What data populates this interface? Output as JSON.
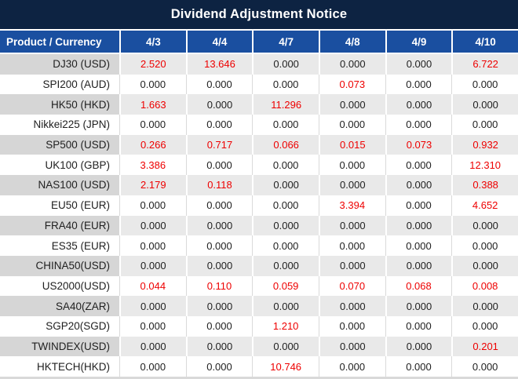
{
  "colors": {
    "title_bg": "#0d2342",
    "header_bg": "#1a4fa0",
    "row_gray": "#e9e9e9",
    "row_gray_product": "#d6d6d6",
    "row_white": "#ffffff",
    "value_red": "#ee0000",
    "value_black": "#212121"
  },
  "chart_data": {
    "type": "table",
    "title": "Dividend Adjustment Notice",
    "columns": [
      "Product / Currency",
      "4/3",
      "4/4",
      "4/7",
      "4/8",
      "4/9",
      "4/10"
    ],
    "rows": [
      {
        "product": "DJ30 (USD)",
        "values": [
          "2.520",
          "13.646",
          "0.000",
          "0.000",
          "0.000",
          "6.722"
        ],
        "red": [
          true,
          true,
          false,
          false,
          false,
          true
        ]
      },
      {
        "product": "SPI200 (AUD)",
        "values": [
          "0.000",
          "0.000",
          "0.000",
          "0.073",
          "0.000",
          "0.000"
        ],
        "red": [
          false,
          false,
          false,
          true,
          false,
          false
        ]
      },
      {
        "product": "HK50 (HKD)",
        "values": [
          "1.663",
          "0.000",
          "11.296",
          "0.000",
          "0.000",
          "0.000"
        ],
        "red": [
          true,
          false,
          true,
          false,
          false,
          false
        ]
      },
      {
        "product": "Nikkei225 (JPN)",
        "values": [
          "0.000",
          "0.000",
          "0.000",
          "0.000",
          "0.000",
          "0.000"
        ],
        "red": [
          false,
          false,
          false,
          false,
          false,
          false
        ]
      },
      {
        "product": "SP500 (USD)",
        "values": [
          "0.266",
          "0.717",
          "0.066",
          "0.015",
          "0.073",
          "0.932"
        ],
        "red": [
          true,
          true,
          true,
          true,
          true,
          true
        ]
      },
      {
        "product": "UK100 (GBP)",
        "values": [
          "3.386",
          "0.000",
          "0.000",
          "0.000",
          "0.000",
          "12.310"
        ],
        "red": [
          true,
          false,
          false,
          false,
          false,
          true
        ]
      },
      {
        "product": "NAS100 (USD)",
        "values": [
          "2.179",
          "0.118",
          "0.000",
          "0.000",
          "0.000",
          "0.388"
        ],
        "red": [
          true,
          true,
          false,
          false,
          false,
          true
        ]
      },
      {
        "product": "EU50 (EUR)",
        "values": [
          "0.000",
          "0.000",
          "0.000",
          "3.394",
          "0.000",
          "4.652"
        ],
        "red": [
          false,
          false,
          false,
          true,
          false,
          true
        ]
      },
      {
        "product": "FRA40 (EUR)",
        "values": [
          "0.000",
          "0.000",
          "0.000",
          "0.000",
          "0.000",
          "0.000"
        ],
        "red": [
          false,
          false,
          false,
          false,
          false,
          false
        ]
      },
      {
        "product": "ES35 (EUR)",
        "values": [
          "0.000",
          "0.000",
          "0.000",
          "0.000",
          "0.000",
          "0.000"
        ],
        "red": [
          false,
          false,
          false,
          false,
          false,
          false
        ]
      },
      {
        "product": "CHINA50(USD)",
        "values": [
          "0.000",
          "0.000",
          "0.000",
          "0.000",
          "0.000",
          "0.000"
        ],
        "red": [
          false,
          false,
          false,
          false,
          false,
          false
        ]
      },
      {
        "product": "US2000(USD)",
        "values": [
          "0.044",
          "0.110",
          "0.059",
          "0.070",
          "0.068",
          "0.008"
        ],
        "red": [
          true,
          true,
          true,
          true,
          true,
          true
        ]
      },
      {
        "product": "SA40(ZAR)",
        "values": [
          "0.000",
          "0.000",
          "0.000",
          "0.000",
          "0.000",
          "0.000"
        ],
        "red": [
          false,
          false,
          false,
          false,
          false,
          false
        ]
      },
      {
        "product": "SGP20(SGD)",
        "values": [
          "0.000",
          "0.000",
          "1.210",
          "0.000",
          "0.000",
          "0.000"
        ],
        "red": [
          false,
          false,
          true,
          false,
          false,
          false
        ]
      },
      {
        "product": "TWINDEX(USD)",
        "values": [
          "0.000",
          "0.000",
          "0.000",
          "0.000",
          "0.000",
          "0.201"
        ],
        "red": [
          false,
          false,
          false,
          false,
          false,
          true
        ]
      },
      {
        "product": "HKTECH(HKD)",
        "values": [
          "0.000",
          "0.000",
          "10.746",
          "0.000",
          "0.000",
          "0.000"
        ],
        "red": [
          false,
          false,
          true,
          false,
          false,
          false
        ]
      }
    ]
  }
}
